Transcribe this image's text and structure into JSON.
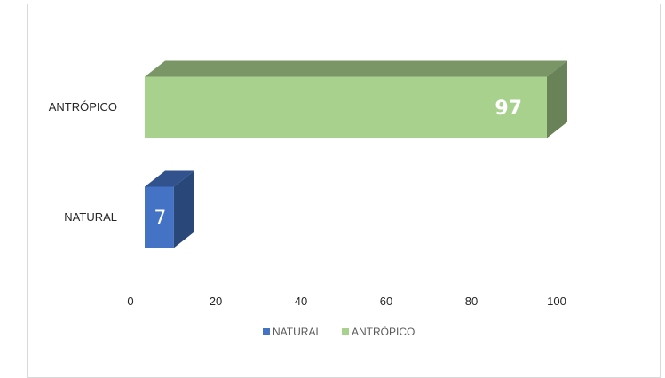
{
  "chart_data": {
    "type": "bar",
    "orientation": "horizontal",
    "three_d": true,
    "categories": [
      "NATURAL",
      "ANTRÓPICO"
    ],
    "values": [
      7,
      97
    ],
    "colors": {
      "NATURAL": "#4472C4",
      "ANTRÓPICO": "#A9D18E"
    },
    "data_labels": [
      "7",
      "97"
    ],
    "xlim": [
      0,
      100
    ],
    "xticks": [
      "0",
      "20",
      "40",
      "60",
      "80",
      "100"
    ],
    "title": "",
    "xlabel": "",
    "ylabel": "",
    "grid": false,
    "legend": {
      "placement": "bottom",
      "entries": [
        "NATURAL",
        "ANTRÓPICO"
      ]
    }
  }
}
